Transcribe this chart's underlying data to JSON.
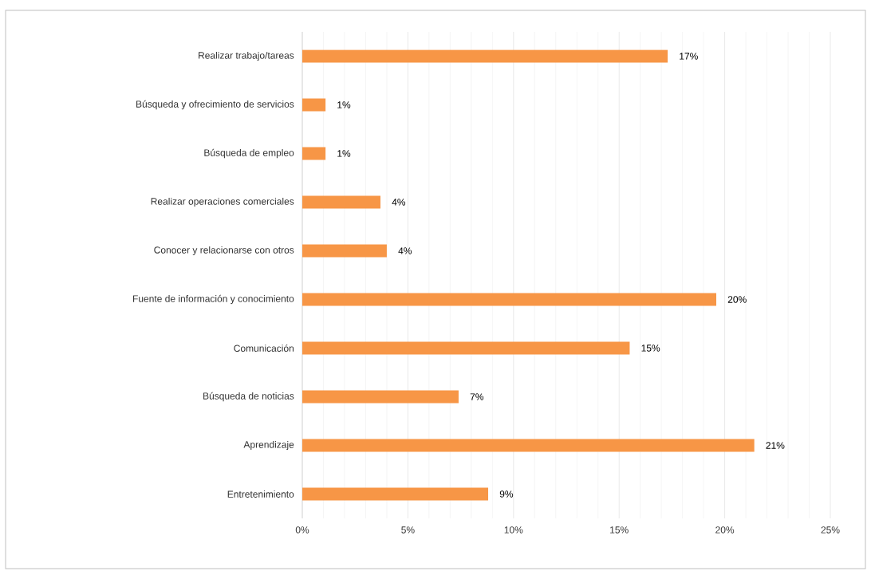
{
  "chart_data": {
    "type": "bar",
    "orientation": "horizontal",
    "categories": [
      "Realizar trabajo/tareas",
      "Búsqueda y ofrecimiento de servicios",
      "Búsqueda de empleo",
      "Realizar operaciones comerciales",
      "Conocer y relacionarse con otros",
      "Fuente de información y conocimiento",
      "Comunicación",
      "Búsqueda de noticias",
      "Aprendizaje",
      "Entretenimiento"
    ],
    "values": [
      17.3,
      1.1,
      1.1,
      3.7,
      4.0,
      19.6,
      15.5,
      7.4,
      21.4,
      8.8
    ],
    "value_labels": [
      "17%",
      "1%",
      "1%",
      "4%",
      "4%",
      "20%",
      "15%",
      "7%",
      "21%",
      "9%"
    ],
    "color": "#f79646",
    "xlim": [
      0,
      25
    ],
    "xticks": [
      {
        "value": 0,
        "label": "0%"
      },
      {
        "value": 5,
        "label": "5%"
      },
      {
        "value": 10,
        "label": "10%"
      },
      {
        "value": 15,
        "label": "15%"
      },
      {
        "value": 20,
        "label": "20%"
      },
      {
        "value": 25,
        "label": "25%"
      }
    ],
    "grid": "x"
  }
}
